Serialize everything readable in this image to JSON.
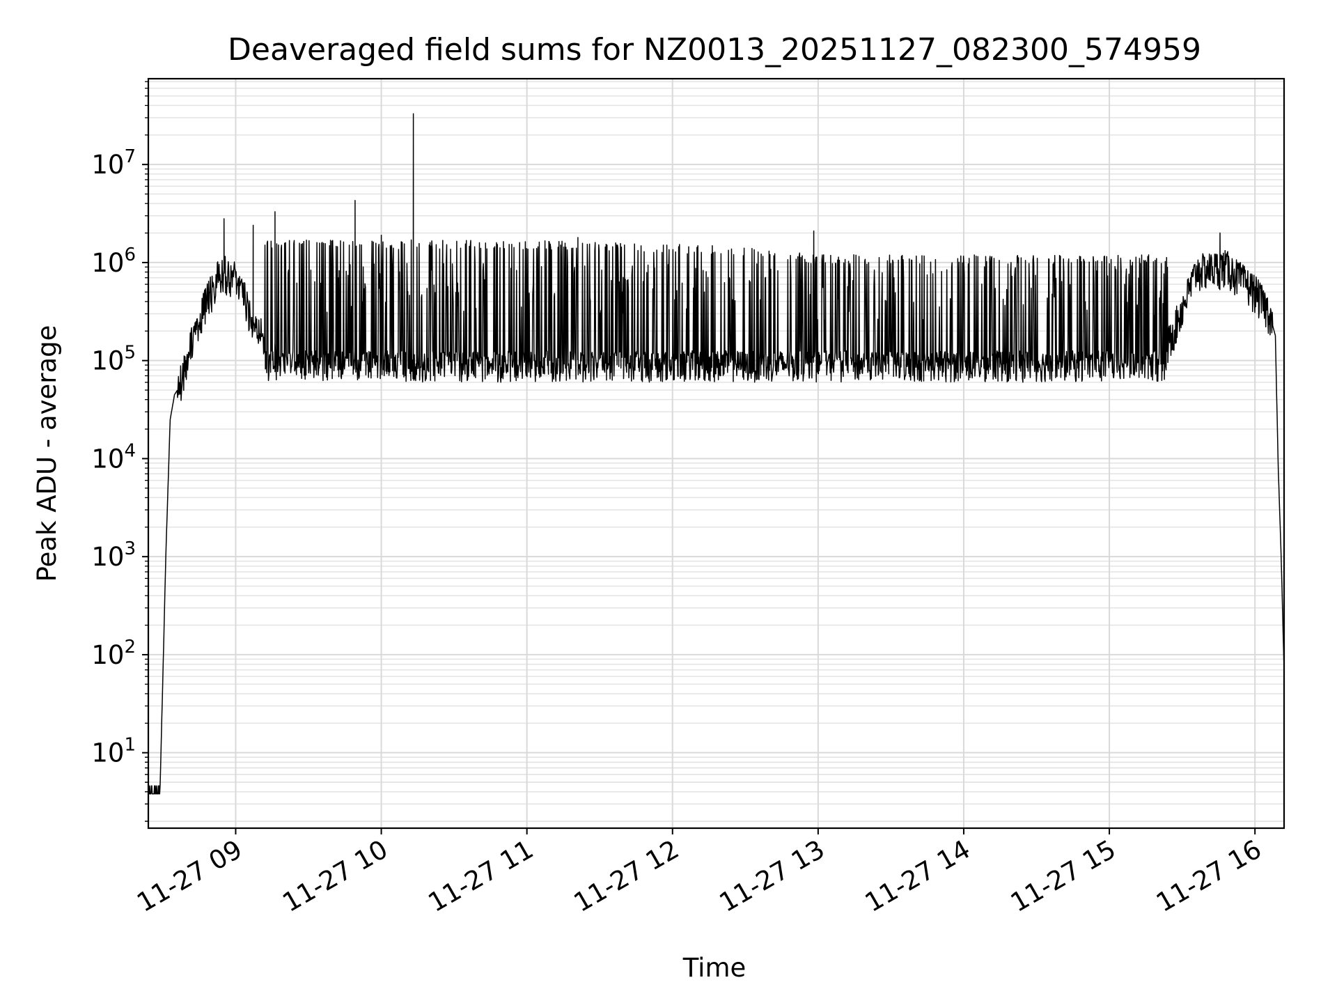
{
  "chart_data": {
    "type": "line",
    "title": "Deaveraged field sums for NZ0013_20251127_082300_574959",
    "xlabel": "Time",
    "ylabel": "Peak ADU - average",
    "xscale": "time",
    "yscale": "log",
    "xlim": [
      8.4,
      16.2
    ],
    "ylim": [
      1.7,
      75000000
    ],
    "grid": true,
    "legend": "none",
    "x_ticks": [
      {
        "value": 9,
        "label": "11-27 09"
      },
      {
        "value": 10,
        "label": "11-27 10"
      },
      {
        "value": 11,
        "label": "11-27 11"
      },
      {
        "value": 12,
        "label": "11-27 12"
      },
      {
        "value": 13,
        "label": "11-27 13"
      },
      {
        "value": 14,
        "label": "11-27 14"
      },
      {
        "value": 15,
        "label": "11-27 15"
      },
      {
        "value": 16,
        "label": "11-27 16"
      }
    ],
    "y_ticks": [
      {
        "value": 10,
        "base": "10",
        "exp": "1"
      },
      {
        "value": 100,
        "base": "10",
        "exp": "2"
      },
      {
        "value": 1000,
        "base": "10",
        "exp": "3"
      },
      {
        "value": 10000,
        "base": "10",
        "exp": "4"
      },
      {
        "value": 100000,
        "base": "10",
        "exp": "5"
      },
      {
        "value": 1000000,
        "base": "10",
        "exp": "6"
      },
      {
        "value": 10000000,
        "base": "10",
        "exp": "7"
      }
    ],
    "series": [
      {
        "name": "Peak ADU - average",
        "color": "#000000",
        "profile": {
          "x": [
            8.4,
            8.48,
            8.5,
            8.52,
            8.55,
            8.58,
            8.6,
            8.65,
            8.7,
            8.8,
            8.9,
            9.0,
            9.1,
            9.2,
            9.5,
            10.0,
            10.2,
            10.5,
            11.0,
            11.5,
            12.0,
            12.5,
            13.0,
            13.2,
            14.0,
            15.0,
            15.4,
            15.6,
            15.8,
            16.0,
            16.1,
            16.14,
            16.16,
            16.18,
            16.2
          ],
          "y": [
            4,
            4,
            60,
            1000,
            25000,
            45000,
            50000,
            80000,
            150000,
            400000,
            800000,
            700000,
            300000,
            150000,
            140000,
            140000,
            150000,
            150000,
            130000,
            140000,
            140000,
            140000,
            130000,
            120000,
            130000,
            130000,
            140000,
            800000,
            900000,
            500000,
            300000,
            180000,
            8000,
            1000,
            70
          ]
        },
        "spikes": [
          {
            "x": 10.22,
            "y": 33000000
          },
          {
            "x": 9.82,
            "y": 4300000
          },
          {
            "x": 9.27,
            "y": 3300000
          },
          {
            "x": 9.12,
            "y": 2400000
          },
          {
            "x": 8.92,
            "y": 2800000
          },
          {
            "x": 12.97,
            "y": 2100000
          },
          {
            "x": 15.76,
            "y": 2000000
          },
          {
            "x": 10.0,
            "y": 1900000
          },
          {
            "x": 11.35,
            "y": 1800000
          }
        ],
        "band": {
          "x_range": [
            9.2,
            15.4
          ],
          "high_levels": [
            [
              9.2,
              1700000
            ],
            [
              11.0,
              1700000
            ],
            [
              12.3,
              1500000
            ],
            [
              13.0,
              1200000
            ],
            [
              15.4,
              1200000
            ]
          ],
          "low": [
            60000,
            110000
          ]
        }
      }
    ]
  }
}
